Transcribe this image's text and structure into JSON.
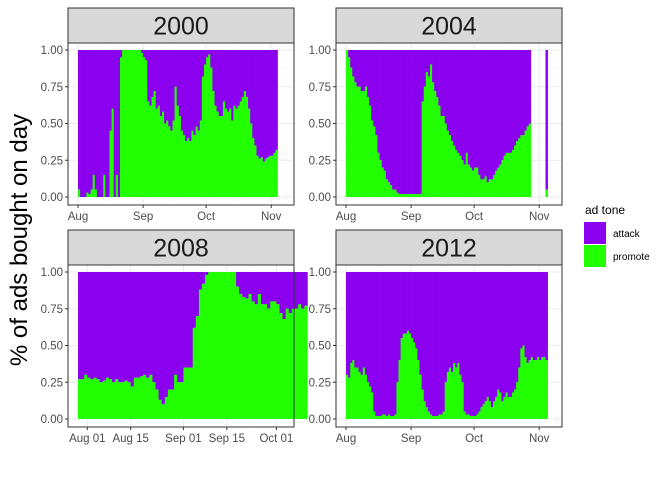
{
  "chart_data": {
    "type": "area",
    "title": "",
    "ylabel": "% of ads bought on day",
    "xlabel": "",
    "ylim": [
      0,
      1
    ],
    "y_ticks": [
      "0.00",
      "0.25",
      "0.50",
      "0.75",
      "1.00"
    ],
    "legend": {
      "title": "ad tone",
      "position": "right",
      "entries": [
        {
          "name": "attack",
          "color": "#8b00ee"
        },
        {
          "name": "promote",
          "color": "#22ff00"
        }
      ]
    },
    "colors": {
      "attack": "#8b00ee",
      "promote": "#22ff00"
    },
    "panels": [
      {
        "label": "2000",
        "x_start": 0,
        "x_ticks": [
          {
            "label": "Aug",
            "day": 0
          },
          {
            "label": "Sep",
            "day": 31
          },
          {
            "label": "Oct",
            "day": 61
          },
          {
            "label": "Nov",
            "day": 92
          }
        ],
        "series": [
          {
            "start": 0,
            "values": [
              0.05,
              0,
              0,
              0,
              0.03,
              0.02,
              0.05,
              0.15,
              0.05,
              0,
              0,
              0,
              0.15,
              0,
              0,
              0.45,
              0.6,
              0,
              0.15,
              0,
              0.95,
              1,
              1,
              1,
              1,
              1,
              1,
              1,
              1,
              1,
              0.98,
              0.95,
              0.93,
              0.65,
              0.62,
              0.68,
              0.72,
              0.6,
              0.62,
              0.55,
              0.58,
              0.5,
              0.52,
              0.48,
              0.45,
              0.52,
              0.75,
              0.62,
              0.55,
              0.45,
              0.42,
              0.38,
              0.4,
              0.38,
              0.45,
              0.42,
              0.48,
              0.45,
              0.52,
              0.82,
              0.9,
              0.95,
              0.97,
              0.88,
              0.72,
              0.62,
              0.58,
              0.55,
              0.55,
              0.65,
              0.6,
              0.58,
              0.6,
              0.52,
              0.62,
              0.6,
              0.62,
              0.65,
              0.68,
              0.72,
              0.68,
              0.6,
              0.5,
              0.4,
              0.35,
              0.28,
              0.26,
              0.27,
              0.24,
              0.26,
              0.27,
              0.28,
              0.28,
              0.3,
              0.32
            ]
          }
        ]
      },
      {
        "label": "2004",
        "x_start": 0,
        "x_ticks": [
          {
            "label": "Aug",
            "day": 0
          },
          {
            "label": "Sep",
            "day": 31
          },
          {
            "label": "Oct",
            "day": 61
          },
          {
            "label": "Nov",
            "day": 92
          }
        ],
        "series": [
          {
            "start": 0,
            "values": [
              1,
              0.95,
              0.88,
              0.82,
              0.78,
              0.75,
              0.75,
              0.72,
              0.72,
              0.75,
              0.68,
              0.62,
              0.52,
              0.48,
              0.42,
              0.3,
              0.25,
              0.2,
              0.18,
              0.12,
              0.1,
              0.08,
              0.05,
              0.05,
              0.03,
              0.02,
              0.02,
              0.02,
              0.02,
              0.02,
              0.02,
              0.02,
              0.02,
              0.02,
              0.02,
              0.02,
              0.65,
              0.75,
              0.85,
              0.82,
              0.9,
              0.78,
              0.72,
              0.68,
              0.62,
              0.55,
              0.55,
              0.5,
              0.45,
              0.42,
              0.38,
              0.35,
              0.32,
              0.3,
              0.28,
              0.25,
              0.22,
              0.3,
              0.22,
              0.2,
              0.18,
              0.2,
              0.2,
              0.15,
              0.12,
              0.12,
              0.14,
              0.1,
              0.12,
              0.12,
              0.15,
              0.18,
              0.2,
              0.22,
              0.25,
              0.28,
              0.3,
              0.3,
              0.3,
              0.32,
              0.35,
              0.38,
              0.4,
              0.42,
              0.42,
              0.45,
              0.48,
              0.5
            ]
          },
          {
            "start": 95,
            "values": [
              0.05
            ]
          }
        ]
      },
      {
        "label": "2008",
        "x_start": -3,
        "x_ticks": [
          {
            "label": "Aug 01",
            "day": 0
          },
          {
            "label": "Aug 15",
            "day": 14
          },
          {
            "label": "Sep 01",
            "day": 31
          },
          {
            "label": "Sep 15",
            "day": 45
          },
          {
            "label": "Oct 01",
            "day": 61
          }
        ],
        "series": [
          {
            "start": -3,
            "values": [
              0.27,
              0.27,
              0.3,
              0.28,
              0.27,
              0.28,
              0.27,
              0.25,
              0.26,
              0.28,
              0.27,
              0.25,
              0.27,
              0.25,
              0.25,
              0.26,
              0.25,
              0.22,
              0.28,
              0.28,
              0.29,
              0.3,
              0.28,
              0.3,
              0.25,
              0.2,
              0.13,
              0.1,
              0.15,
              0.2,
              0.2,
              0.3,
              0.25,
              0.25,
              0.35,
              0.35,
              0.35,
              0.62,
              0.7,
              0.88,
              0.92,
              0.98,
              1,
              1,
              1,
              1,
              1,
              1,
              1,
              1,
              1,
              0.9,
              0.85,
              0.83,
              0.82,
              0.85,
              0.8,
              0.78,
              0.85,
              0.78,
              0.78,
              0.75,
              0.8,
              0.8,
              0.78,
              0.72,
              0.68,
              0.75,
              0.72,
              0.75,
              0.75,
              0.78,
              0.75,
              0.77
            ]
          }
        ]
      },
      {
        "label": "2012",
        "x_start": 0,
        "x_ticks": [
          {
            "label": "Aug",
            "day": 0
          },
          {
            "label": "Sep",
            "day": 31
          },
          {
            "label": "Oct",
            "day": 61
          },
          {
            "label": "Nov",
            "day": 92
          }
        ],
        "series": [
          {
            "start": 0,
            "values": [
              0.3,
              0.28,
              0.38,
              0.4,
              0.35,
              0.35,
              0.32,
              0.3,
              0.35,
              0.3,
              0.25,
              0.22,
              0.18,
              0.05,
              0.02,
              0.02,
              0.02,
              0.03,
              0.03,
              0.02,
              0.03,
              0.02,
              0.02,
              0.03,
              0.25,
              0.4,
              0.55,
              0.58,
              0.58,
              0.6,
              0.58,
              0.55,
              0.52,
              0.48,
              0.4,
              0.3,
              0.2,
              0.12,
              0.08,
              0.05,
              0.03,
              0.02,
              0.02,
              0.02,
              0.03,
              0.03,
              0.05,
              0.25,
              0.32,
              0.35,
              0.32,
              0.38,
              0.35,
              0.38,
              0.3,
              0.25,
              0.05,
              0.03,
              0.03,
              0.02,
              0.02,
              0.02,
              0.03,
              0.05,
              0.08,
              0.1,
              0.12,
              0.15,
              0.12,
              0.08,
              0.12,
              0.15,
              0.2,
              0.18,
              0.12,
              0.15,
              0.18,
              0.15,
              0.15,
              0.18,
              0.2,
              0.25,
              0.35,
              0.48,
              0.5,
              0.42,
              0.38,
              0.4,
              0.42,
              0.4,
              0.4,
              0.42,
              0.4,
              0.42,
              0.42,
              0.4
            ]
          }
        ]
      }
    ]
  }
}
